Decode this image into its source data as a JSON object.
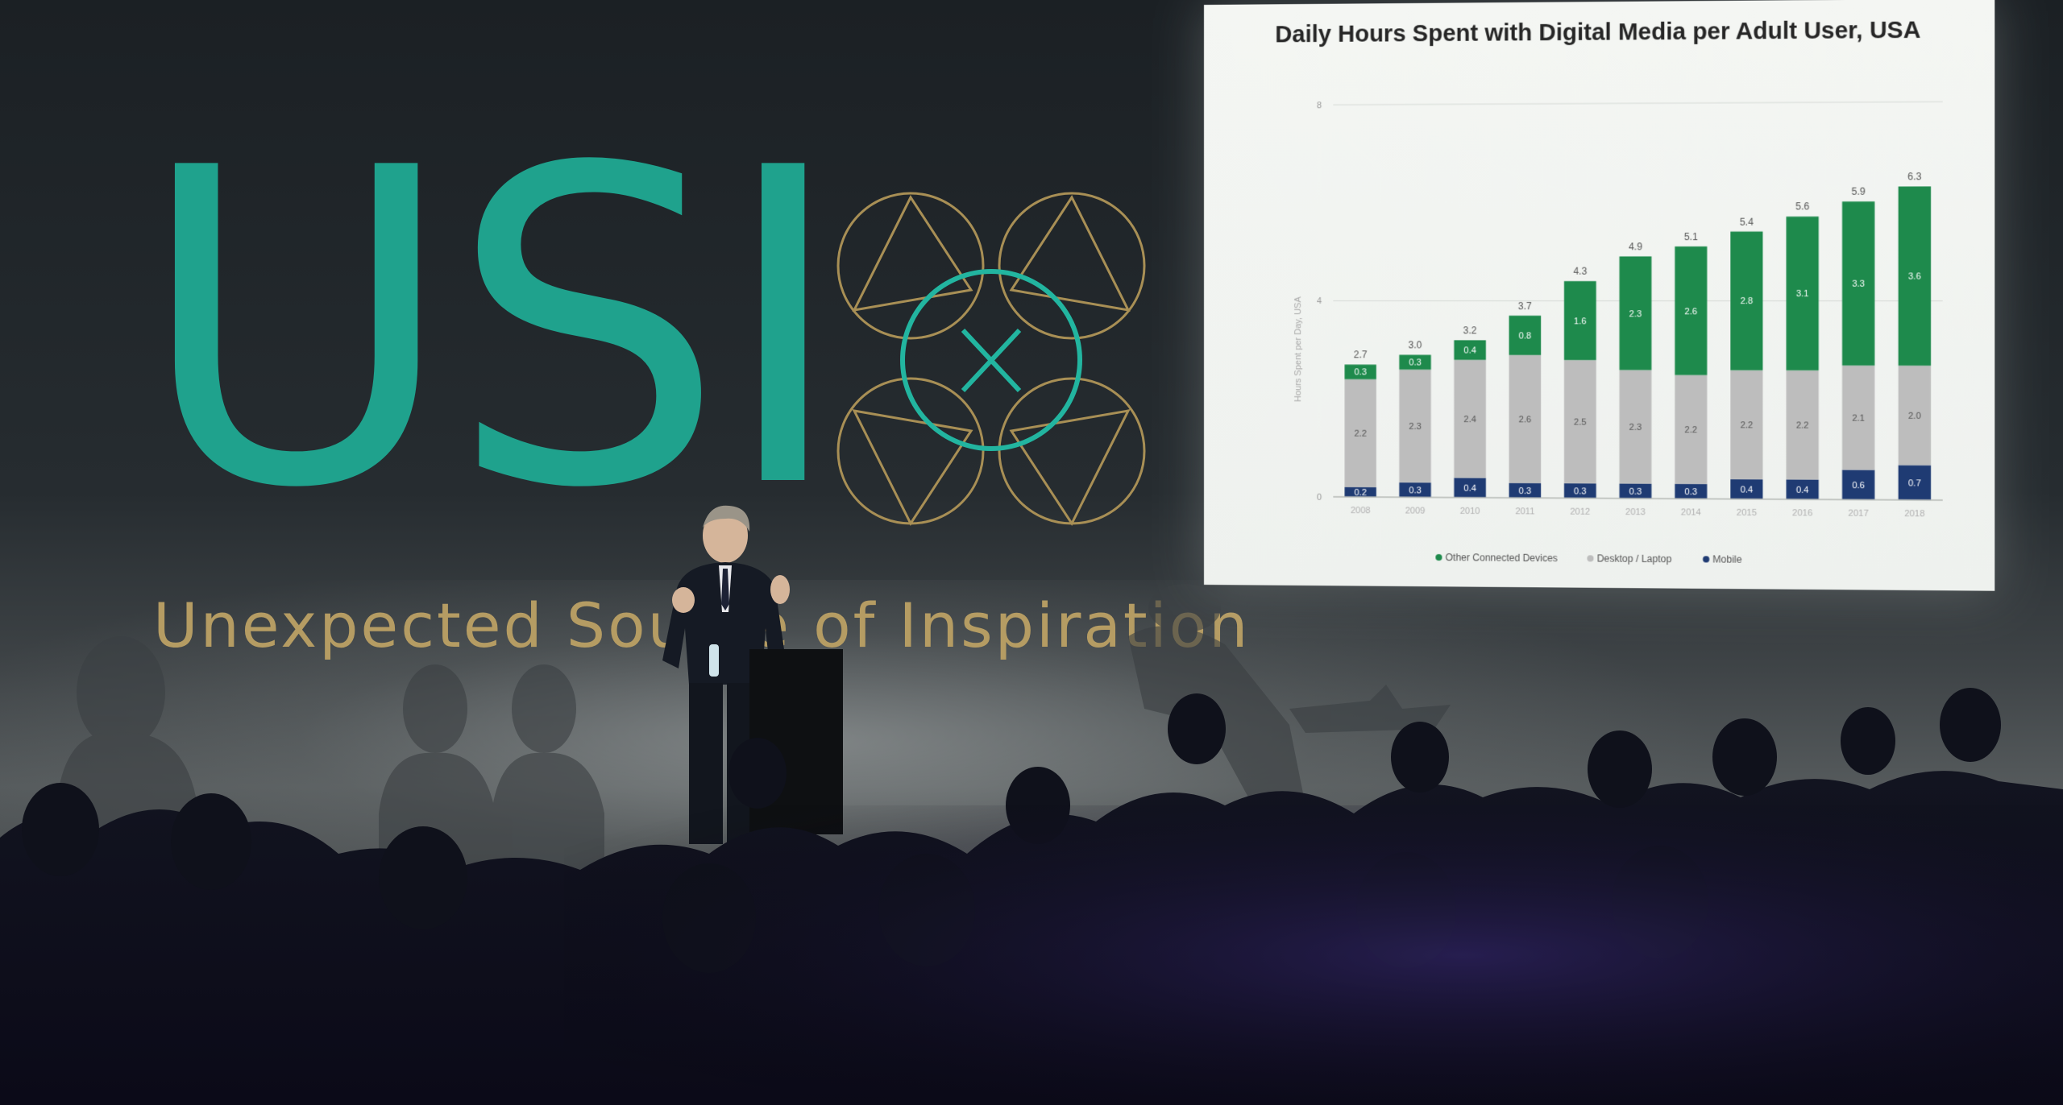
{
  "scene": {
    "logo_text": "USI",
    "tagline": "Unexpected Source of Inspiration",
    "logo_color": "#1fa28d",
    "tagline_color": "#b59c63",
    "emblem_gold": "#a88f55",
    "emblem_teal": "#22b5a0"
  },
  "slide": {
    "title": "Daily Hours Spent with Digital Media per Adult User, USA"
  },
  "chart_data": {
    "type": "bar",
    "stacked": true,
    "title": "Daily Hours Spent with Digital Media per Adult User, USA",
    "ylabel": "Hours Spent per Day, USA",
    "ylim": [
      0,
      8
    ],
    "yticks": [
      0,
      4,
      8
    ],
    "categories": [
      "2008",
      "2009",
      "2010",
      "2011",
      "2012",
      "2013",
      "2014",
      "2015",
      "2016",
      "2017",
      "2018"
    ],
    "series": [
      {
        "name": "Mobile",
        "color": "#1f3b73",
        "values": [
          0.2,
          0.3,
          0.4,
          0.3,
          0.3,
          0.3,
          0.3,
          0.4,
          0.4,
          0.6,
          0.7
        ]
      },
      {
        "name": "Desktop / Laptop",
        "color": "#bdbdbd",
        "values": [
          2.2,
          2.3,
          2.4,
          2.6,
          2.5,
          2.3,
          2.2,
          2.2,
          2.2,
          2.1,
          2.0
        ]
      },
      {
        "name": "Other Connected Devices",
        "color": "#1e8a4c",
        "values": [
          0.3,
          0.3,
          0.4,
          0.8,
          1.6,
          2.3,
          2.6,
          2.8,
          3.1,
          3.3,
          3.6
        ]
      }
    ],
    "totals": [
      2.7,
      3.0,
      3.2,
      3.7,
      4.3,
      4.9,
      5.1,
      5.4,
      5.6,
      5.9,
      6.3
    ],
    "legend": [
      "Other Connected Devices",
      "Desktop / Laptop",
      "Mobile"
    ],
    "legend_position": "bottom",
    "grid": true
  }
}
